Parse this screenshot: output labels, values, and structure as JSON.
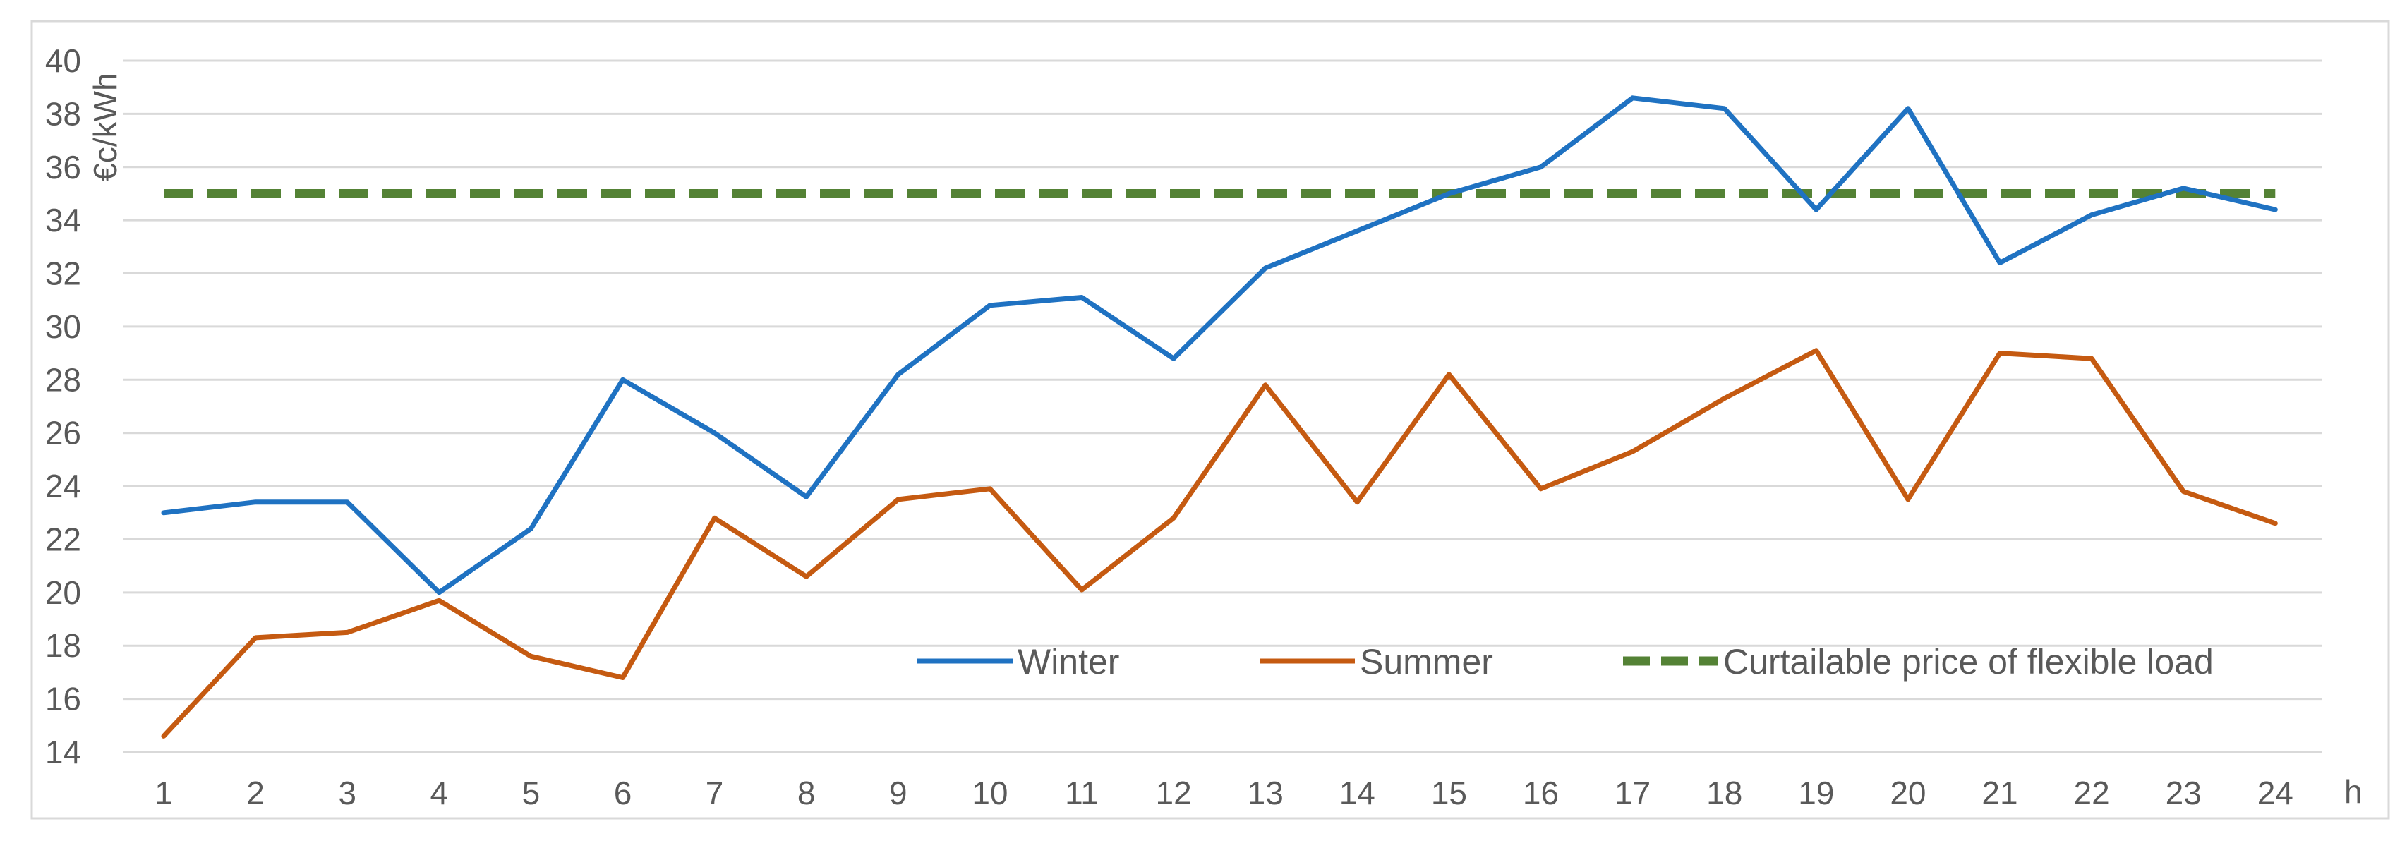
{
  "chart_data": {
    "type": "line",
    "title": "",
    "xlabel": "h",
    "ylabel": "€c/kWh",
    "ylim": [
      14,
      40
    ],
    "yticks": [
      "14",
      "16",
      "18",
      "20",
      "22",
      "24",
      "26",
      "28",
      "30",
      "32",
      "34",
      "36",
      "38",
      "40"
    ],
    "x": [
      "1",
      "2",
      "3",
      "4",
      "5",
      "6",
      "7",
      "8",
      "9",
      "10",
      "11",
      "12",
      "13",
      "14",
      "15",
      "16",
      "17",
      "18",
      "19",
      "20",
      "21",
      "22",
      "23",
      "24"
    ],
    "grid": true,
    "legend_position": "bottom-right inside",
    "series": [
      {
        "name": "Winter",
        "color": "#1f72c2",
        "style": "solid",
        "values": [
          23.0,
          23.4,
          23.4,
          20.0,
          22.4,
          28.0,
          26.0,
          23.6,
          28.2,
          30.8,
          31.1,
          28.8,
          32.2,
          33.6,
          35.0,
          36.0,
          38.6,
          38.2,
          34.4,
          38.2,
          32.4,
          34.2,
          35.2,
          34.4
        ]
      },
      {
        "name": "Summer",
        "color": "#c55a11",
        "style": "solid",
        "values": [
          14.6,
          18.3,
          18.5,
          19.7,
          17.6,
          16.8,
          22.8,
          20.6,
          23.5,
          23.9,
          20.1,
          22.8,
          27.8,
          23.4,
          28.2,
          23.9,
          25.3,
          27.3,
          29.1,
          23.5,
          29.0,
          28.8,
          23.8,
          22.6
        ]
      },
      {
        "name": "Curtailable price of flexible load",
        "color": "#548235",
        "style": "dashed",
        "values": [
          35,
          35,
          35,
          35,
          35,
          35,
          35,
          35,
          35,
          35,
          35,
          35,
          35,
          35,
          35,
          35,
          35,
          35,
          35,
          35,
          35,
          35,
          35,
          35
        ]
      }
    ]
  }
}
